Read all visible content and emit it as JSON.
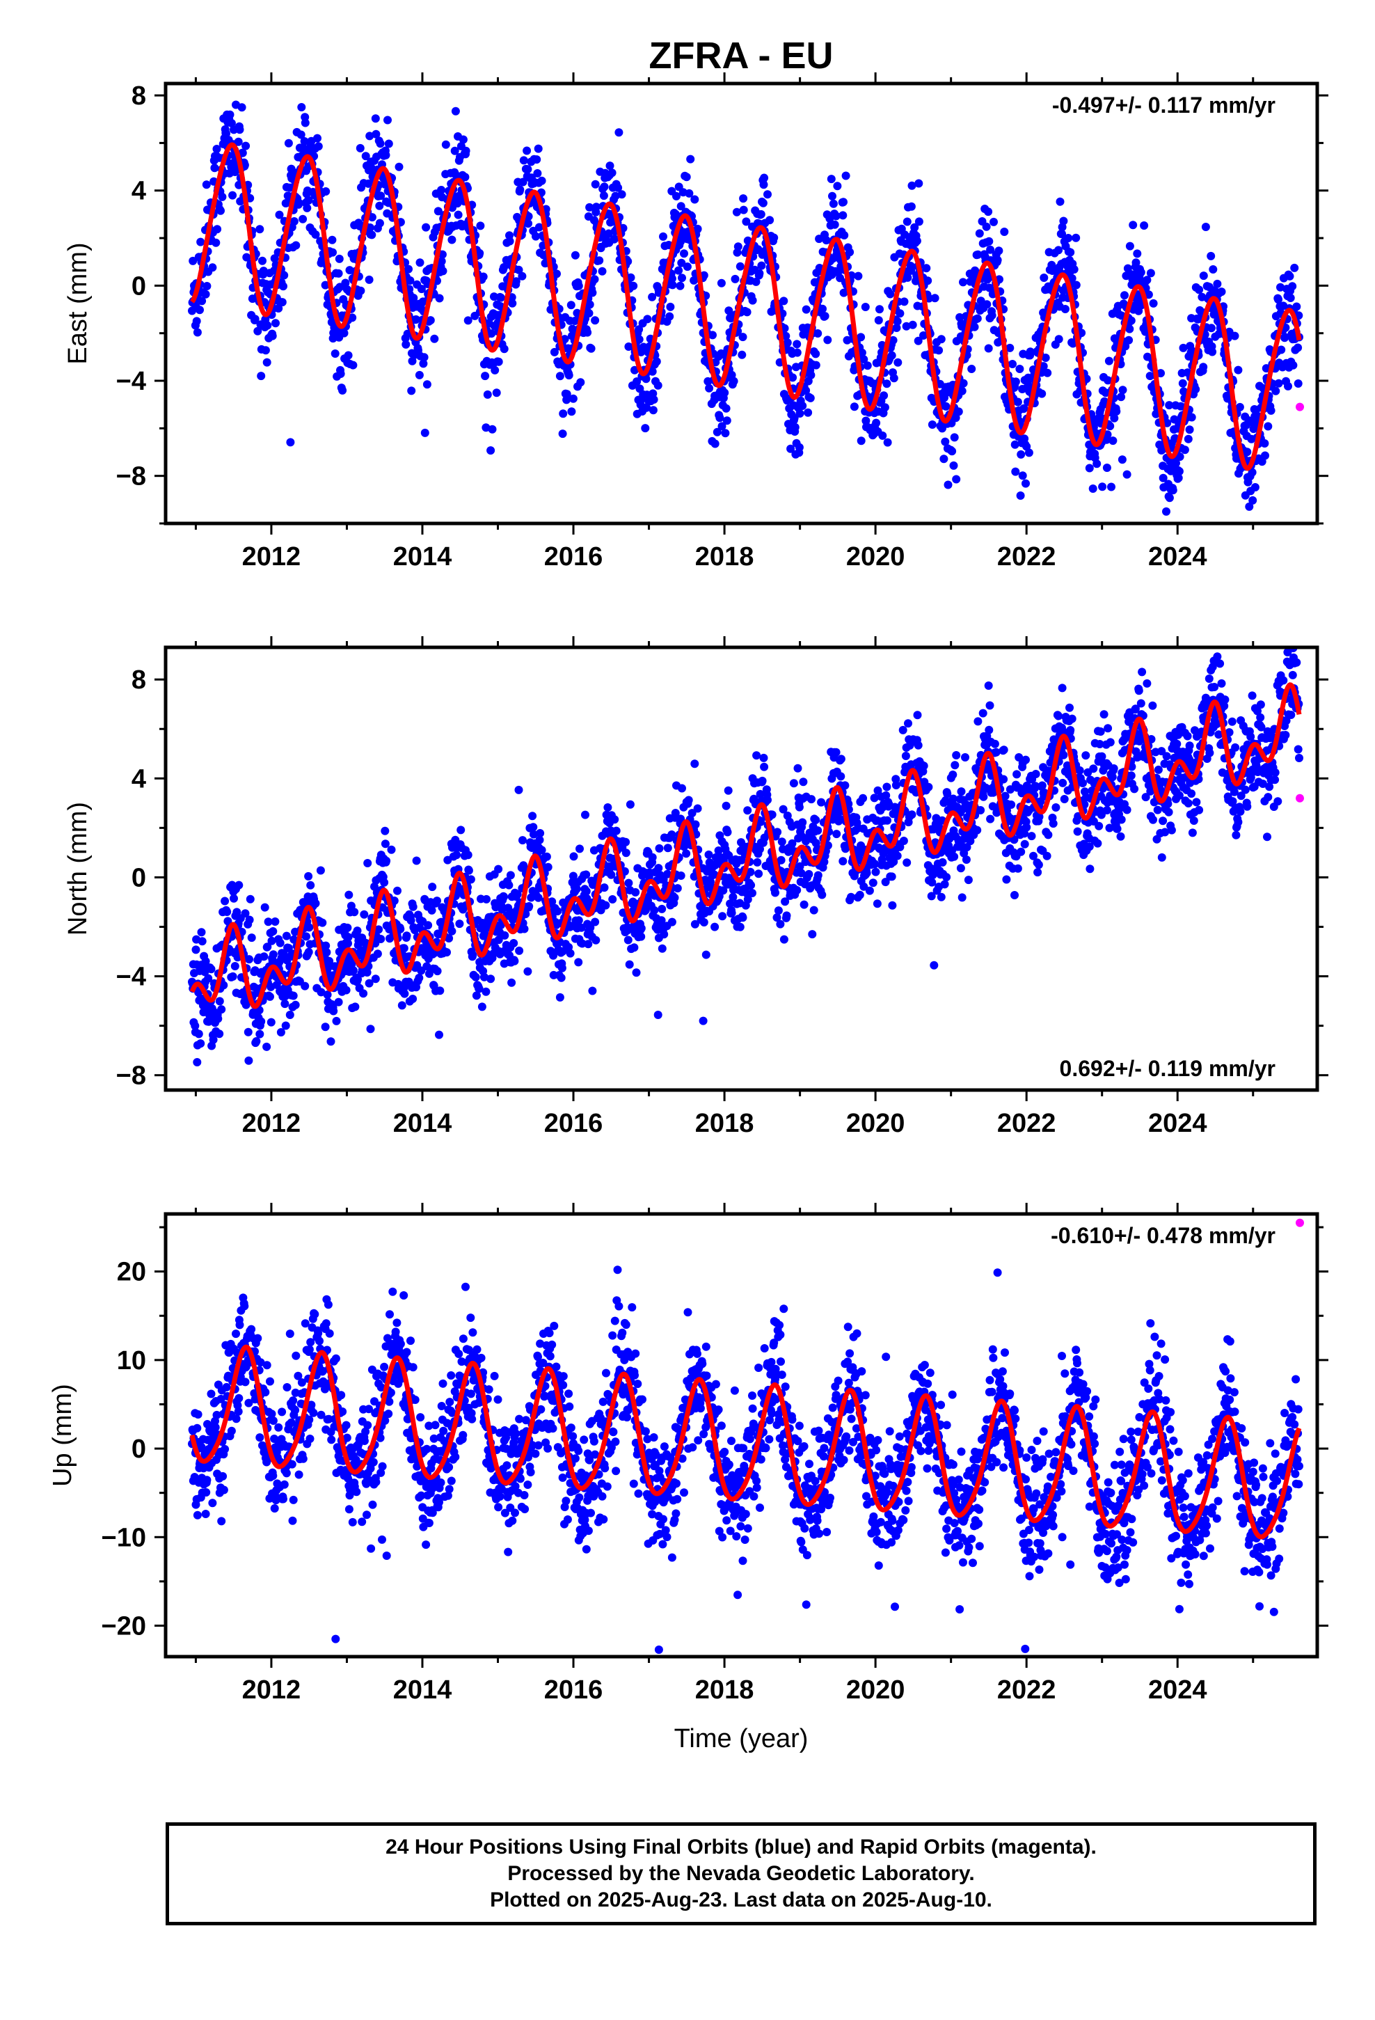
{
  "footer": {
    "line1": "24 Hour Positions Using Final Orbits (blue) and Rapid Orbits (magenta).",
    "line2": "Processed by the Nevada Geodetic Laboratory.",
    "line3": "Plotted on 2025-Aug-23. Last data on 2025-Aug-10."
  },
  "colors": {
    "final": "#0000ff",
    "rapid": "#ff00ff",
    "fit": "#ff0000"
  },
  "chart_data": [
    {
      "type": "scatter",
      "title": "ZFRA - EU",
      "xlabel": "",
      "ylabel": "East (mm)",
      "xlim": [
        2010.6,
        2025.85
      ],
      "ylim": [
        -10,
        8.5
      ],
      "xticks": [
        2012,
        2014,
        2016,
        2018,
        2020,
        2022,
        2024
      ],
      "yticks": [
        -8,
        -4,
        0,
        4,
        8
      ],
      "grid": false,
      "rate_label": "-0.497+/- 0.117 mm/yr",
      "rate_position": "top-right",
      "fit": {
        "slope": -0.497,
        "offset": 2.8,
        "annual_amplitude": 3.4,
        "annual_peak": 0.45,
        "semiannual_amplitude": 0.35,
        "semiannual_phase": 0.1
      },
      "scatter_noise_sd": 1.2,
      "series": [
        {
          "name": "Final Orbits",
          "color": "#0000ff",
          "x_start": 2010.95,
          "x_end": 2025.61
        },
        {
          "name": "Rapid Orbits",
          "color": "#ff00ff",
          "x": [
            2025.62
          ],
          "y": [
            -5.1
          ]
        }
      ]
    },
    {
      "type": "scatter",
      "title": "",
      "xlabel": "",
      "ylabel": "North (mm)",
      "xlim": [
        2010.6,
        2025.85
      ],
      "ylim": [
        -8.6,
        9.3
      ],
      "xticks": [
        2012,
        2014,
        2016,
        2018,
        2020,
        2022,
        2024
      ],
      "yticks": [
        -8,
        -4,
        0,
        4,
        8
      ],
      "grid": false,
      "rate_label": "0.692+/- 0.119 mm/yr",
      "rate_position": "bottom-right",
      "fit": {
        "slope": 0.692,
        "offset": -4.3,
        "annual_amplitude": 1.1,
        "annual_peak": 0.45,
        "semiannual_amplitude": 1.0,
        "semiannual_phase": 0.5
      },
      "scatter_noise_sd": 1.05,
      "series": [
        {
          "name": "Final Orbits",
          "color": "#0000ff",
          "x_start": 2010.95,
          "x_end": 2025.61
        },
        {
          "name": "Rapid Orbits",
          "color": "#ff00ff",
          "x": [
            2025.62
          ],
          "y": [
            3.2
          ]
        }
      ]
    },
    {
      "type": "scatter",
      "title": "",
      "xlabel": "Time (year)",
      "ylabel": "Up (mm)",
      "xlim": [
        2010.6,
        2025.85
      ],
      "ylim": [
        -23.5,
        26.5
      ],
      "xticks": [
        2012,
        2014,
        2016,
        2018,
        2020,
        2022,
        2024
      ],
      "yticks": [
        -20,
        -10,
        0,
        10,
        20
      ],
      "grid": false,
      "rate_label": "-0.610+/- 0.478 mm/yr",
      "rate_position": "top-right",
      "fit": {
        "slope": -0.61,
        "offset": 4.5,
        "annual_amplitude": 6.5,
        "annual_peak": 0.65,
        "semiannual_amplitude": 1.0,
        "semiannual_phase": 0.2
      },
      "scatter_noise_sd": 3.4,
      "series": [
        {
          "name": "Final Orbits",
          "color": "#0000ff",
          "x_start": 2010.95,
          "x_end": 2025.61
        },
        {
          "name": "Rapid Orbits",
          "color": "#ff00ff",
          "x": [
            2025.62
          ],
          "y": [
            25.5
          ]
        }
      ]
    }
  ]
}
